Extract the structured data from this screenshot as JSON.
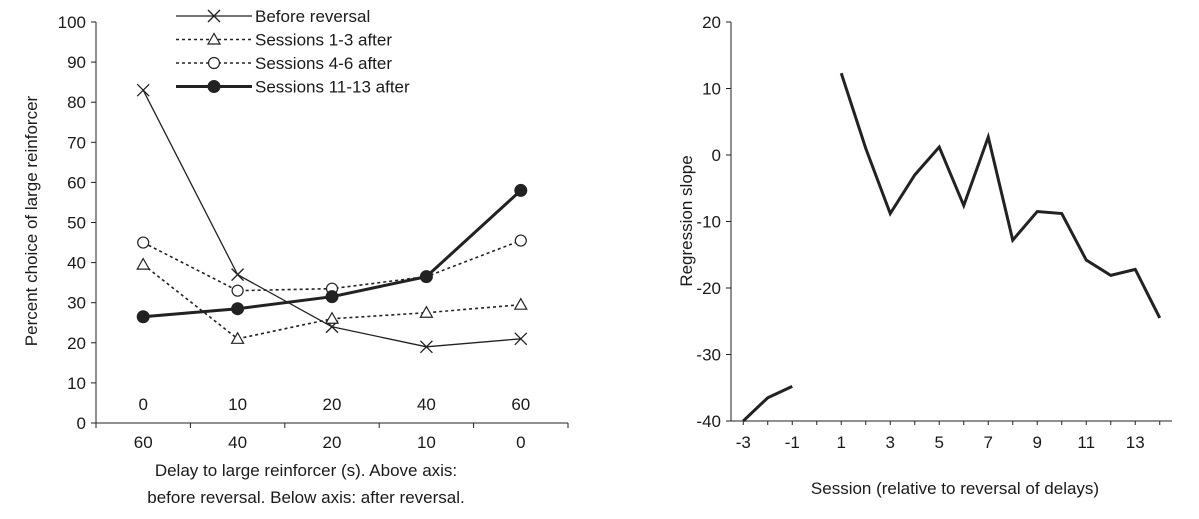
{
  "chart_data": [
    {
      "type": "line",
      "title": "",
      "ylabel": "Percent choice of large reinforcer",
      "xlabel_lines": [
        "Delay to large reinforcer (s). Above axis:",
        "before reversal. Below  axis: after reversal."
      ],
      "ylim": [
        0,
        100
      ],
      "yticks": [
        0,
        10,
        20,
        30,
        40,
        50,
        60,
        70,
        80,
        90,
        100
      ],
      "categories_above_axis": [
        "0",
        "10",
        "20",
        "40",
        "60"
      ],
      "categories_below_axis": [
        "60",
        "40",
        "20",
        "10",
        "0"
      ],
      "grid": false,
      "legend_position": "top",
      "series": [
        {
          "name": "Before reversal",
          "marker": "x",
          "line": "solid-thin",
          "values": [
            83,
            37,
            24,
            19,
            21
          ]
        },
        {
          "name": "Sessions 1-3 after",
          "marker": "triangle-open",
          "line": "dotted",
          "values": [
            39.5,
            21,
            26,
            27.5,
            29.5
          ]
        },
        {
          "name": "Sessions 4-6 after",
          "marker": "circle-open",
          "line": "dotted",
          "values": [
            45,
            33,
            33.5,
            36.5,
            45.5
          ]
        },
        {
          "name": "Sessions 11-13 after",
          "marker": "circle-filled",
          "line": "solid-thick",
          "values": [
            26.5,
            28.5,
            31.5,
            36.5,
            58
          ]
        }
      ]
    },
    {
      "type": "line",
      "title": "",
      "ylabel": "Regression slope",
      "xlabel": "Session (relative to reversal of delays)",
      "ylim": [
        -40,
        20
      ],
      "yticks": [
        -40,
        -30,
        -20,
        -10,
        0,
        10,
        20
      ],
      "xlim": [
        -3.5,
        14.5
      ],
      "xticks": [
        -3,
        -1,
        1,
        3,
        5,
        7,
        9,
        11,
        13
      ],
      "xtick_labels": [
        "-3",
        "-1",
        "1",
        "3",
        "5",
        "7",
        "9",
        "11",
        "13"
      ],
      "grid": false,
      "series": [
        {
          "segment": "before",
          "x": [
            -3,
            -2,
            -1
          ],
          "y": [
            -40,
            -36.5,
            -34.8
          ]
        },
        {
          "segment": "after",
          "x": [
            1,
            2,
            3,
            4,
            5,
            6,
            7,
            8,
            9,
            10,
            11,
            12,
            13,
            14
          ],
          "y": [
            12.3,
            1,
            -8.8,
            -3,
            1.2,
            -7.6,
            2.7,
            -12.8,
            -8.5,
            -8.8,
            -15.8,
            -18.1,
            -17.2,
            -24.5
          ]
        }
      ]
    }
  ]
}
